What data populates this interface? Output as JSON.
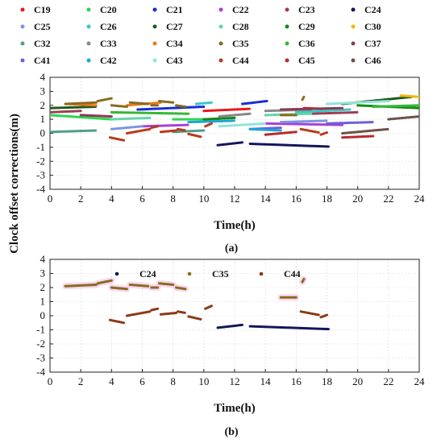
{
  "chart_data": [
    {
      "panel": "(a)",
      "type": "scatter",
      "xlabel": "Time(h)",
      "ylabel": "Clock offset corrections(m)",
      "xlim": [
        0,
        24
      ],
      "ylim": [
        -4,
        4
      ],
      "xticks": [
        0,
        2,
        4,
        6,
        8,
        10,
        12,
        14,
        16,
        18,
        20,
        22,
        24
      ],
      "yticks": [
        4,
        3,
        2,
        1,
        0,
        -1,
        -2,
        -3,
        -4
      ],
      "grid": true,
      "legend_position": "top",
      "legend_columns": 6,
      "series": [
        {
          "name": "C19",
          "color": "#e6191b",
          "segments": [
            [
              [
                10,
                1.6
              ],
              [
                13,
                1.75
              ]
            ],
            [
              [
                16.5,
                1.8
              ],
              [
                19,
                1.7
              ]
            ]
          ]
        },
        {
          "name": "C20",
          "color": "#2bd654",
          "segments": [
            [
              [
                0,
                1.3
              ],
              [
                4,
                1.0
              ]
            ],
            [
              [
                8,
                1.0
              ],
              [
                11,
                1.0
              ]
            ]
          ]
        },
        {
          "name": "C21",
          "color": "#1a2bd8",
          "segments": [
            [
              [
                5.7,
                1.7
              ],
              [
                10,
                1.9
              ]
            ],
            [
              [
                12.5,
                2.1
              ],
              [
                14.1,
                2.3
              ]
            ]
          ]
        },
        {
          "name": "C22",
          "color": "#a640d8",
          "segments": [
            [
              [
                6,
                0.5
              ],
              [
                9,
                0.6
              ]
            ],
            [
              [
                14,
                0.7
              ],
              [
                19,
                0.6
              ]
            ]
          ]
        },
        {
          "name": "C23",
          "color": "#a03c52",
          "segments": [
            [
              [
                0,
                1.5
              ],
              [
                2,
                1.6
              ]
            ],
            [
              [
                17,
                1.4
              ],
              [
                20,
                1.5
              ]
            ]
          ]
        },
        {
          "name": "C24",
          "color": "#131659",
          "segments": [
            [
              [
                10.9,
                -0.85
              ],
              [
                12.5,
                -0.65
              ]
            ],
            [
              [
                13.0,
                -0.75
              ],
              [
                18.1,
                -0.95
              ]
            ]
          ]
        },
        {
          "name": "C25",
          "color": "#7a96e0",
          "segments": [
            [
              [
                4,
                0.3
              ],
              [
                6,
                0.5
              ]
            ],
            [
              [
                15,
                0.8
              ],
              [
                18,
                0.9
              ]
            ]
          ]
        },
        {
          "name": "C26",
          "color": "#39c7c7",
          "segments": [
            [
              [
                9.5,
                2.1
              ],
              [
                10.5,
                2.2
              ]
            ],
            [
              [
                16,
                1.5
              ],
              [
                19.5,
                1.7
              ]
            ]
          ]
        },
        {
          "name": "C27",
          "color": "#1d5a1d",
          "segments": [
            [
              [
                0,
                1.8
              ],
              [
                3,
                1.9
              ]
            ],
            [
              [
                19,
                2.1
              ],
              [
                23.5,
                2.6
              ]
            ]
          ]
        },
        {
          "name": "C28",
          "color": "#63d6a9",
          "segments": [
            [
              [
                4,
                1.0
              ],
              [
                6.5,
                1.1
              ]
            ],
            [
              [
                14,
                1.3
              ],
              [
                17,
                1.4
              ]
            ]
          ]
        },
        {
          "name": "C29",
          "color": "#148a14",
          "segments": [
            [
              [
                10,
                1.0
              ],
              [
                12,
                1.1
              ]
            ],
            [
              [
                20,
                2.0
              ],
              [
                24,
                1.8
              ]
            ]
          ]
        },
        {
          "name": "C30",
          "color": "#f2b807",
          "segments": [
            [
              [
                22.8,
                2.7
              ],
              [
                24,
                2.6
              ]
            ]
          ]
        },
        {
          "name": "C32",
          "color": "#4f9e8c",
          "segments": [
            [
              [
                0,
                0.1
              ],
              [
                3,
                0.2
              ]
            ],
            [
              [
                8,
                0.1
              ],
              [
                10,
                0.2
              ]
            ]
          ]
        },
        {
          "name": "C33",
          "color": "#878787",
          "segments": [
            [
              [
                11,
                1.2
              ],
              [
                13,
                1.4
              ]
            ],
            [
              [
                14,
                1.6
              ],
              [
                17,
                1.7
              ]
            ]
          ]
        },
        {
          "name": "C34",
          "color": "#e87a1e",
          "segments": [
            [
              [
                1,
                2.1
              ],
              [
                3,
                2.0
              ]
            ],
            [
              [
                5,
                2.0
              ],
              [
                7.2,
                2.2
              ]
            ]
          ]
        },
        {
          "name": "C35",
          "color": "#8a6a1e",
          "segments": [
            [
              [
                1,
                2.1
              ],
              [
                3,
                2.2
              ]
            ],
            [
              [
                3.1,
                2.3
              ],
              [
                4,
                2.5
              ]
            ],
            [
              [
                4,
                2.0
              ],
              [
                5,
                1.9
              ]
            ],
            [
              [
                5.2,
                2.2
              ],
              [
                6.4,
                2.1
              ]
            ],
            [
              [
                6.6,
                2.0
              ],
              [
                7,
                2.0
              ]
            ],
            [
              [
                7.1,
                2.3
              ],
              [
                8,
                2.2
              ]
            ],
            [
              [
                8.2,
                2.0
              ],
              [
                8.8,
                1.9
              ]
            ],
            [
              [
                15,
                1.3
              ],
              [
                16,
                1.3
              ]
            ],
            [
              [
                16.4,
                2.4
              ],
              [
                16.5,
                2.6
              ]
            ]
          ]
        },
        {
          "name": "C36",
          "color": "#33b833",
          "segments": [
            [
              [
                4,
                1.5
              ],
              [
                9,
                1.4
              ]
            ],
            [
              [
                21,
                1.9
              ],
              [
                24,
                2.0
              ]
            ]
          ]
        },
        {
          "name": "C37",
          "color": "#8c3a52",
          "segments": [
            [
              [
                2,
                1.3
              ],
              [
                4,
                1.2
              ]
            ],
            [
              [
                15,
                1.7
              ],
              [
                19,
                1.8
              ]
            ]
          ]
        },
        {
          "name": "C41",
          "color": "#6e5ed8",
          "segments": [
            [
              [
                13,
                0.3
              ],
              [
                15,
                0.4
              ]
            ],
            [
              [
                18,
                0.7
              ],
              [
                21,
                0.8
              ]
            ]
          ]
        },
        {
          "name": "C42",
          "color": "#1da6d6",
          "segments": [
            [
              [
                9,
                0.8
              ],
              [
                12,
                0.9
              ]
            ],
            [
              [
                13,
                0.3
              ],
              [
                15,
                0.2
              ]
            ]
          ]
        },
        {
          "name": "C43",
          "color": "#8fe6d8",
          "segments": [
            [
              [
                11,
                0.5
              ],
              [
                14,
                0.7
              ]
            ],
            [
              [
                18,
                2.1
              ],
              [
                22,
                2.3
              ]
            ]
          ]
        },
        {
          "name": "C44",
          "color": "#b83a1a",
          "segments": [
            [
              [
                3.9,
                -0.3
              ],
              [
                4.8,
                -0.5
              ]
            ],
            [
              [
                5.0,
                0.0
              ],
              [
                6.5,
                0.3
              ]
            ],
            [
              [
                6.6,
                0.4
              ],
              [
                7.0,
                0.5
              ]
            ],
            [
              [
                7.2,
                0.1
              ],
              [
                8.2,
                0.2
              ]
            ],
            [
              [
                8.3,
                0.3
              ],
              [
                8.8,
                0.2
              ]
            ],
            [
              [
                9.0,
                -0.05
              ],
              [
                9.8,
                -0.25
              ]
            ],
            [
              [
                10.1,
                0.5
              ],
              [
                10.5,
                0.7
              ]
            ],
            [
              [
                16.3,
                0.3
              ],
              [
                17.5,
                0.05
              ]
            ],
            [
              [
                17.6,
                -0.1
              ],
              [
                18.0,
                0.05
              ]
            ]
          ]
        },
        {
          "name": "C45",
          "color": "#b82b2b",
          "segments": [
            [
              [
                14,
                -0.1
              ],
              [
                16,
                0.1
              ]
            ],
            [
              [
                19,
                -0.3
              ],
              [
                21,
                -0.2
              ]
            ]
          ]
        },
        {
          "name": "C46",
          "color": "#6e5048",
          "segments": [
            [
              [
                19,
                0.0
              ],
              [
                22,
                0.3
              ]
            ],
            [
              [
                22,
                1.0
              ],
              [
                24,
                1.2
              ]
            ]
          ]
        }
      ]
    },
    {
      "panel": "(b)",
      "type": "scatter",
      "xlabel": "Time(h)",
      "ylabel": "Clock offset corrections(m)",
      "xlim": [
        0,
        24
      ],
      "ylim": [
        -4,
        4
      ],
      "xticks": [
        0,
        2,
        4,
        6,
        8,
        10,
        12,
        14,
        16,
        18,
        20,
        22,
        24
      ],
      "yticks": [
        4,
        3,
        2,
        1,
        0,
        -1,
        -2,
        -3,
        -4
      ],
      "grid": true,
      "legend_position": "top",
      "series": [
        {
          "name": "C24",
          "color": "#131659",
          "segments": [
            [
              [
                10.9,
                -0.85
              ],
              [
                12.5,
                -0.65
              ]
            ],
            [
              [
                13.0,
                -0.75
              ],
              [
                18.1,
                -0.95
              ]
            ]
          ]
        },
        {
          "name": "C35",
          "color": "#8a6a1e",
          "segments": [
            [
              [
                1,
                2.1
              ],
              [
                3,
                2.2
              ]
            ],
            [
              [
                3.1,
                2.3
              ],
              [
                4,
                2.5
              ]
            ],
            [
              [
                4,
                2.0
              ],
              [
                5,
                1.9
              ]
            ],
            [
              [
                5.2,
                2.2
              ],
              [
                6.4,
                2.1
              ]
            ],
            [
              [
                6.6,
                2.0
              ],
              [
                7,
                2.0
              ]
            ],
            [
              [
                7.1,
                2.3
              ],
              [
                8,
                2.2
              ]
            ],
            [
              [
                8.2,
                2.0
              ],
              [
                8.8,
                1.9
              ]
            ],
            [
              [
                15,
                1.3
              ],
              [
                16,
                1.3
              ]
            ],
            [
              [
                16.4,
                2.4
              ],
              [
                16.5,
                2.6
              ]
            ]
          ]
        },
        {
          "name": "C44",
          "color": "#8a3a14",
          "segments": [
            [
              [
                3.9,
                -0.3
              ],
              [
                4.8,
                -0.5
              ]
            ],
            [
              [
                5.0,
                0.0
              ],
              [
                6.5,
                0.3
              ]
            ],
            [
              [
                6.6,
                0.4
              ],
              [
                7.0,
                0.5
              ]
            ],
            [
              [
                7.2,
                0.1
              ],
              [
                8.2,
                0.2
              ]
            ],
            [
              [
                8.3,
                0.3
              ],
              [
                8.8,
                0.2
              ]
            ],
            [
              [
                9.0,
                -0.05
              ],
              [
                9.8,
                -0.25
              ]
            ],
            [
              [
                10.1,
                0.5
              ],
              [
                10.5,
                0.7
              ]
            ],
            [
              [
                16.3,
                0.3
              ],
              [
                17.5,
                0.05
              ]
            ],
            [
              [
                17.6,
                -0.1
              ],
              [
                18.0,
                0.05
              ]
            ]
          ]
        }
      ]
    }
  ]
}
